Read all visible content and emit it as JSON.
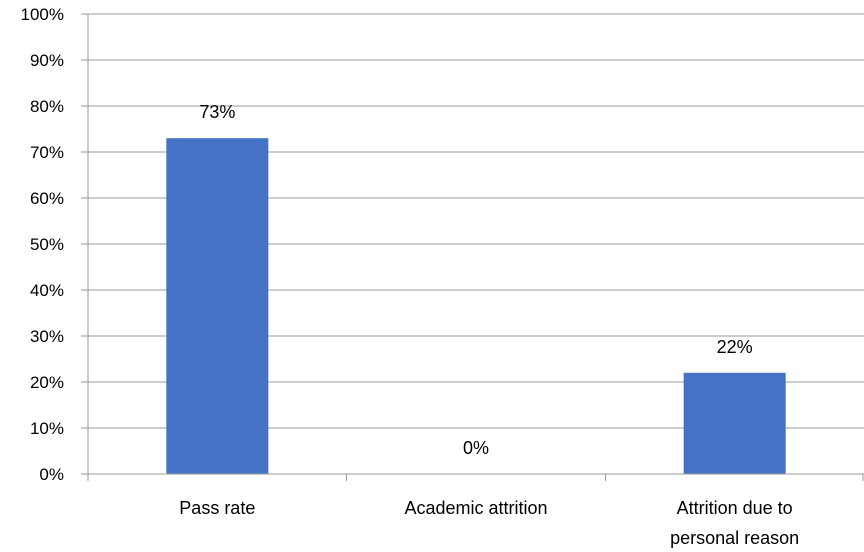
{
  "chart_data": {
    "type": "bar",
    "categories": [
      "Pass rate",
      "Academic attrition",
      "Attrition due to personal reason"
    ],
    "category_label_lines": [
      [
        "Pass rate"
      ],
      [
        "Academic attrition"
      ],
      [
        "Attrition due to",
        "personal reason"
      ]
    ],
    "values": [
      73,
      0,
      22
    ],
    "data_labels": [
      "73%",
      "0%",
      "22%"
    ],
    "ylim": [
      0,
      100
    ],
    "y_ticks": [
      "0%",
      "10%",
      "20%",
      "30%",
      "40%",
      "50%",
      "60%",
      "70%",
      "80%",
      "90%",
      "100%"
    ],
    "unit": "%",
    "title": "",
    "xlabel": "",
    "ylabel": "",
    "grid": true,
    "legend": "none",
    "colors": {
      "bar": "#4472C4",
      "grid": "#999999",
      "axis": "#999999",
      "text": "#000000"
    }
  }
}
